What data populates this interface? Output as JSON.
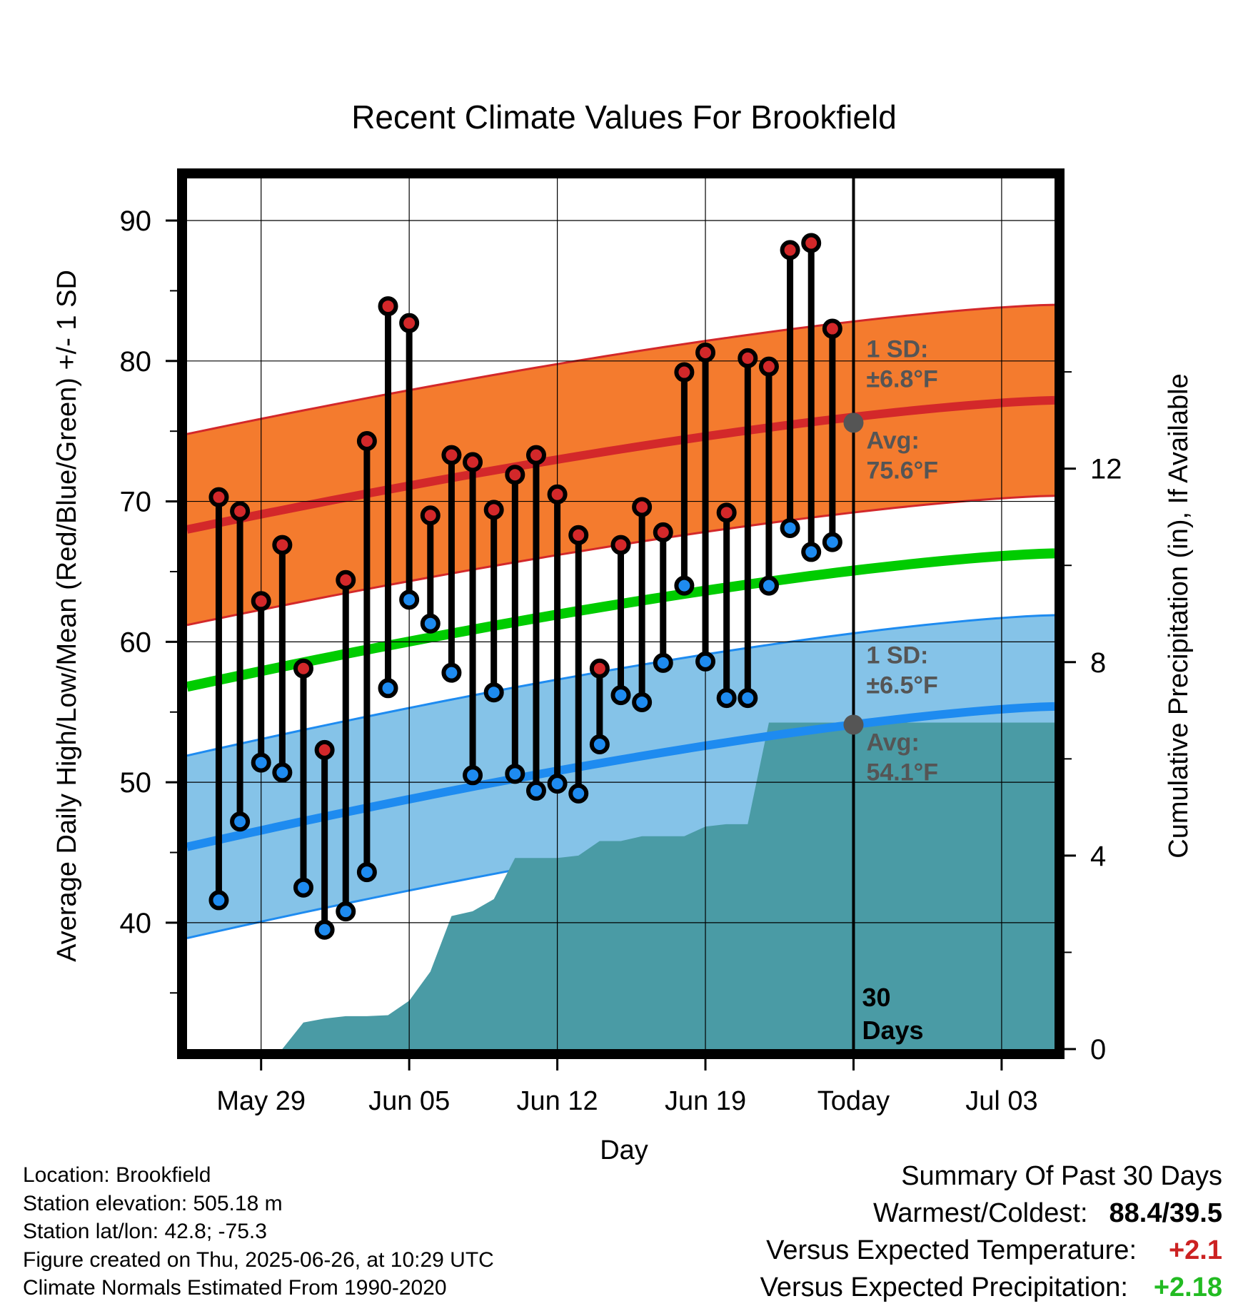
{
  "chart_data": {
    "type": "line",
    "title": "Recent Climate Values For Brookfield",
    "xlabel": "Day",
    "ylabel": "Average Daily High/Low/Mean (Red/Blue/Green) +/- 1 SD",
    "y2label": "Cumulative Precipitation (in), If Available",
    "ylim": [
      31,
      93
    ],
    "y_ticks": [
      "40",
      "50",
      "60",
      "70",
      "80",
      "90"
    ],
    "y2lim": [
      0,
      18
    ],
    "y2_ticks": [
      "0",
      "4",
      "8",
      "12"
    ],
    "x_tick_labels": [
      "May 29",
      "Jun 05",
      "Jun 12",
      "Jun 19",
      "Today",
      "Jul 03"
    ],
    "x_tick_days": [
      3,
      10,
      17,
      24,
      31,
      38
    ],
    "x_range_days": [
      -0.5,
      40.5
    ],
    "grid": true,
    "today_day": 31,
    "today_marker_label": [
      "30",
      "Days"
    ],
    "highs": [
      70.3,
      69.3,
      62.9,
      66.9,
      58.1,
      52.3,
      64.4,
      74.3,
      83.9,
      82.7,
      69.0,
      73.3,
      72.8,
      69.4,
      71.9,
      73.3,
      70.5,
      67.6,
      58.1,
      66.9,
      69.6,
      67.8,
      79.2,
      80.6,
      69.2,
      80.2,
      79.6,
      87.9,
      88.4,
      82.3
    ],
    "lows": [
      41.6,
      47.2,
      51.4,
      50.7,
      42.5,
      39.5,
      40.8,
      43.6,
      56.7,
      63.0,
      61.3,
      57.8,
      50.5,
      56.4,
      50.6,
      49.4,
      49.9,
      49.2,
      52.7,
      56.2,
      55.7,
      58.5,
      64.0,
      58.6,
      56.0,
      56.0,
      64.0,
      68.1,
      66.4,
      67.1
    ],
    "normal_high": {
      "start": 68.0,
      "end": 77.2,
      "sd": "±6.8°F",
      "today_avg": "75.6°F",
      "today_value": 75.6,
      "sd_value": 6.8
    },
    "normal_low": {
      "start": 45.4,
      "end": 55.4,
      "sd": "±6.5°F",
      "today_avg": "54.1°F",
      "today_value": 54.1,
      "sd_value": 6.5
    },
    "normal_mean": {
      "start": 56.8,
      "end": 66.3
    },
    "precip_steps": [
      [
        4,
        0.0
      ],
      [
        5,
        0.55
      ],
      [
        6,
        0.63
      ],
      [
        7,
        0.68
      ],
      [
        8,
        0.68
      ],
      [
        9,
        0.7
      ],
      [
        10,
        1.0
      ],
      [
        11,
        1.6
      ],
      [
        12,
        2.75
      ],
      [
        13,
        2.85
      ],
      [
        14,
        3.1
      ],
      [
        15,
        3.95
      ],
      [
        16,
        3.95
      ],
      [
        17,
        3.95
      ],
      [
        18,
        4.0
      ],
      [
        19,
        4.3
      ],
      [
        20,
        4.3
      ],
      [
        21,
        4.4
      ],
      [
        22,
        4.4
      ],
      [
        23,
        4.4
      ],
      [
        24,
        4.6
      ],
      [
        25,
        4.65
      ],
      [
        26,
        4.65
      ],
      [
        27,
        6.75
      ],
      [
        28,
        6.75
      ],
      [
        29,
        6.75
      ],
      [
        30,
        6.75
      ],
      [
        31,
        6.75
      ],
      [
        40.5,
        6.75
      ]
    ],
    "labels": {
      "sd": "1 SD:",
      "avg": "Avg:"
    },
    "colors": {
      "high_band": "#f47b2e",
      "high_band_edge": "#d3282a",
      "high_line": "#d3282a",
      "low_band": "#85c3e8",
      "low_band_edge": "#1e8bf0",
      "low_line": "#1e8bf0",
      "mean_line": "#00cc00",
      "precip": "#4a9ba5",
      "high_marker": "#d3282a",
      "low_marker": "#1e8bf0",
      "annotation": "#555555"
    }
  },
  "station": {
    "location": "Location: Brookfield",
    "elevation": "Station elevation: 505.18 m",
    "latlon": "Station lat/lon: 42.8; -75.3",
    "created": "Figure created on Thu, 2025-06-26, at 10:29 UTC",
    "normals": "Climate Normals Estimated From 1990-2020"
  },
  "summary": {
    "title": "Summary Of Past 30 Days",
    "warm_cold_label": "Warmest/Coldest:",
    "warm_cold_value": "88.4/39.5",
    "temp_label": "Versus Expected Temperature:",
    "temp_value": "+2.1",
    "precip_label": "Versus Expected Precipitation:",
    "precip_value": "+2.18"
  }
}
